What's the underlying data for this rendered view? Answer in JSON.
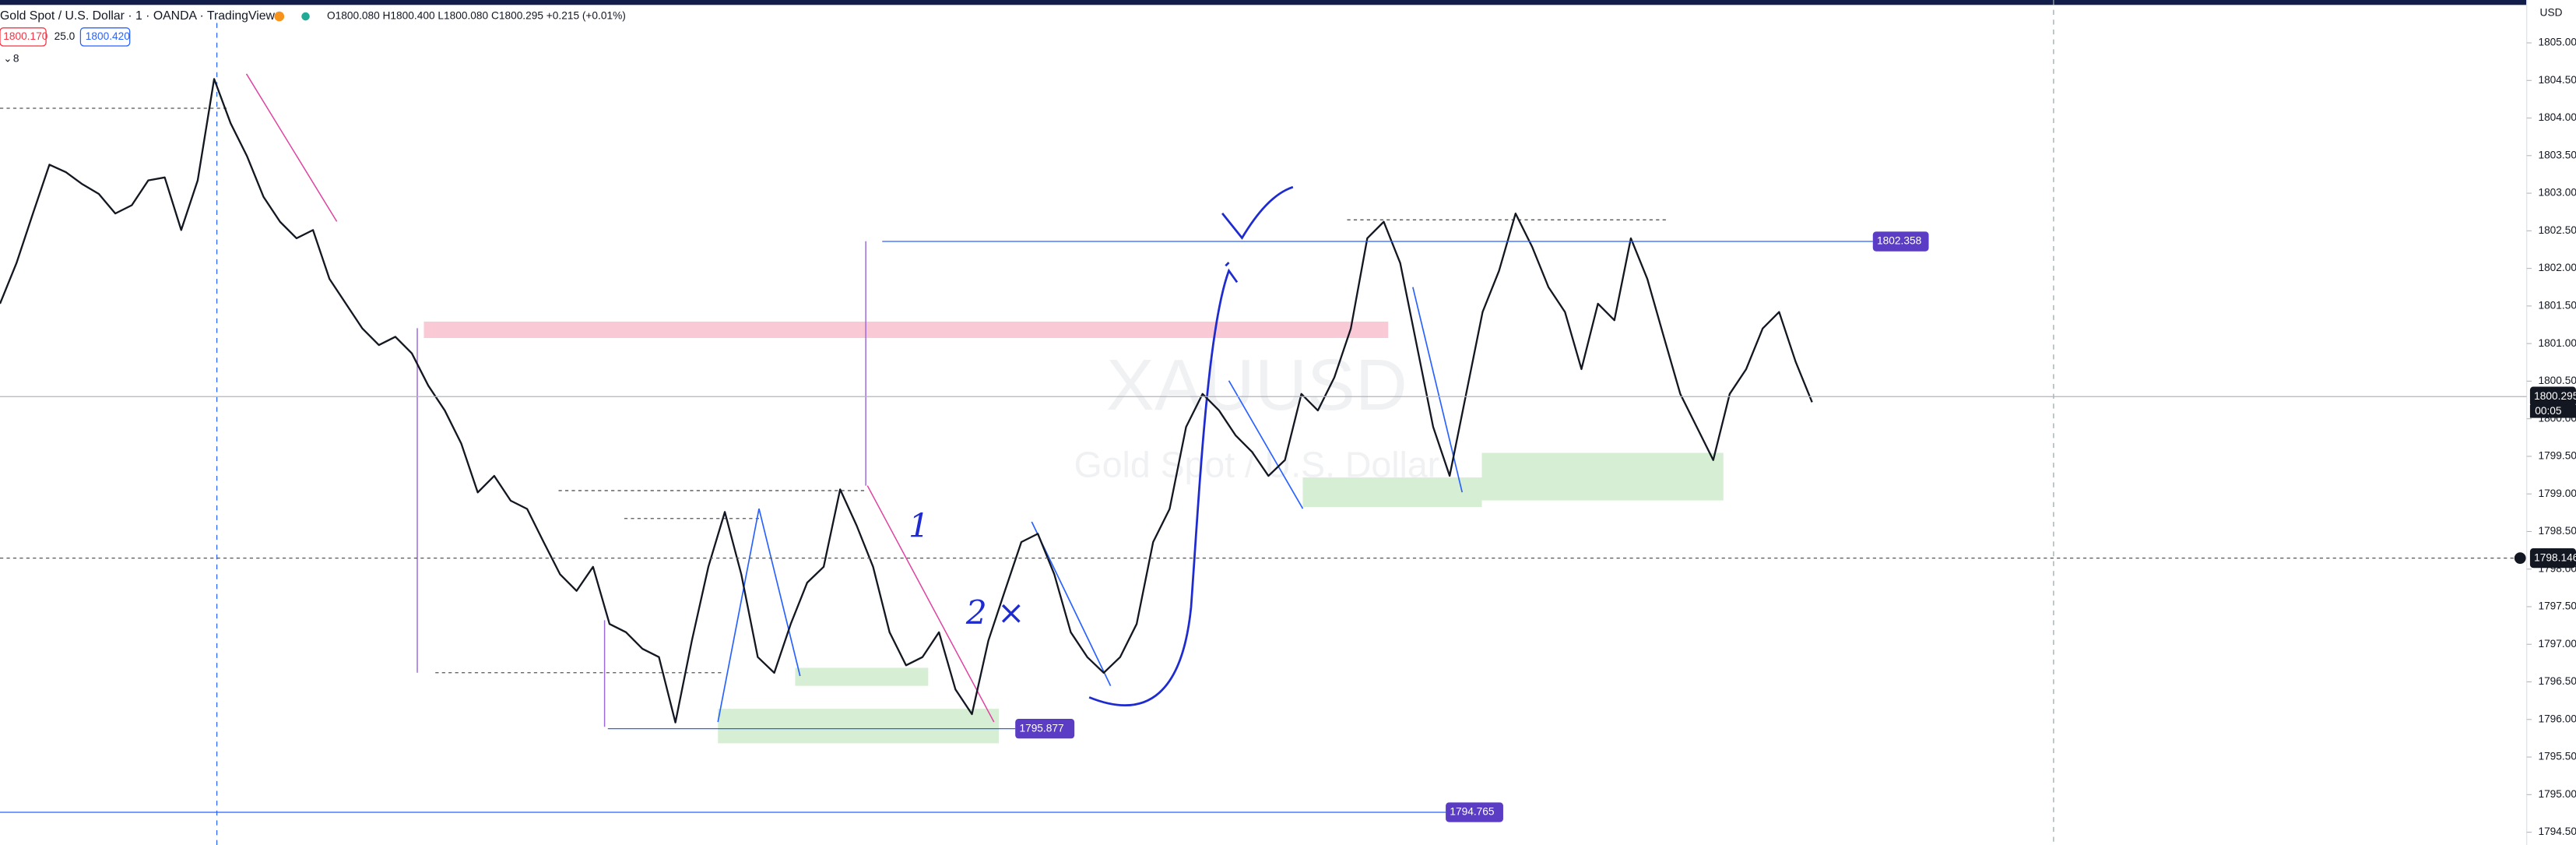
{
  "header": {
    "symbol": "Gold Spot / U.S. Dollar · 1 · OANDA · TradingView",
    "ohlc": "O1800.080 H1800.400 L1800.080 C1800.295 +0.215 (+0.01%)",
    "sell": "1800.170",
    "spread": "25.0",
    "buy": "1800.420",
    "indicators": "8"
  },
  "currency": "USD",
  "watermark": {
    "symbol": "XAUUSD",
    "description": "Gold Spot / U.S. Dollar"
  },
  "annotations": [
    "1",
    "2 ×"
  ],
  "chart_data": {
    "type": "line",
    "color": "#131722",
    "values": [
      1801.53,
      1802.07,
      1802.73,
      1803.38,
      1803.28,
      1803.12,
      1802.99,
      1802.73,
      1802.84,
      1803.17,
      1803.21,
      1802.51,
      1803.17,
      1804.52,
      1803.93,
      1803.49,
      1802.95,
      1802.62,
      1802.4,
      1802.51,
      1801.86,
      1801.53,
      1801.2,
      1800.98,
      1801.09,
      1800.87,
      1800.44,
      1800.11,
      1799.67,
      1799.02,
      1799.24,
      1798.91,
      1798.8,
      1798.36,
      1797.93,
      1797.71,
      1798.03,
      1797.27,
      1797.16,
      1796.94,
      1796.83,
      1795.96,
      1797.05,
      1798.03,
      1798.76,
      1797.93,
      1796.83,
      1796.62,
      1797.27,
      1797.82,
      1798.03,
      1799.06,
      1798.58,
      1798.03,
      1797.16,
      1796.72,
      1796.83,
      1797.16,
      1796.4,
      1796.07,
      1797.05,
      1797.71,
      1798.36,
      1798.47,
      1797.93,
      1797.16,
      1796.83,
      1796.62,
      1796.83,
      1797.27,
      1798.36,
      1798.8,
      1799.89,
      1800.33,
      1800.11,
      1799.78,
      1799.56,
      1799.24,
      1799.45,
      1800.33,
      1800.11,
      1800.55,
      1801.2,
      1802.4,
      1802.62,
      1802.07,
      1800.98,
      1799.89,
      1799.24,
      1800.33,
      1801.42,
      1801.97,
      1802.73,
      1802.29,
      1801.75,
      1801.42,
      1800.66,
      1801.53,
      1801.31,
      1802.4,
      1801.86,
      1801.09,
      1800.33,
      1799.89,
      1799.45,
      1800.33,
      1800.66,
      1801.2,
      1801.42,
      1800.76,
      1800.22
    ],
    "ylim": [
      1794.33,
      1805.57
    ],
    "yticks": [
      {
        "value": 1794.5,
        "label": "1794.500"
      },
      {
        "value": 1795,
        "label": "1795.000"
      },
      {
        "value": 1795.5,
        "label": "1795.500"
      },
      {
        "value": 1796,
        "label": "1796.000"
      },
      {
        "value": 1796.5,
        "label": "1796.500"
      },
      {
        "value": 1797,
        "label": "1797.000"
      },
      {
        "value": 1797.5,
        "label": "1797.500"
      },
      {
        "value": 1798,
        "label": "1798.000"
      },
      {
        "value": 1798.5,
        "label": "1798.500"
      },
      {
        "value": 1799,
        "label": "1799.000"
      },
      {
        "value": 1799.5,
        "label": "1799.500"
      },
      {
        "value": 1800,
        "label": "1800.000"
      },
      {
        "value": 1800.5,
        "label": "1800.500"
      },
      {
        "value": 1801,
        "label": "1801.000"
      },
      {
        "value": 1801.5,
        "label": "1801.500"
      },
      {
        "value": 1802,
        "label": "1802.000"
      },
      {
        "value": 1802.5,
        "label": "1802.500"
      },
      {
        "value": 1803,
        "label": "1803.000"
      },
      {
        "value": 1803.5,
        "label": "1803.500"
      },
      {
        "value": 1804,
        "label": "1804.000"
      },
      {
        "value": 1804.5,
        "label": "1804.500"
      },
      {
        "value": 1805,
        "label": "1805.000"
      }
    ],
    "price_labels": [
      {
        "value": 1802.358,
        "label": "1802.358"
      },
      {
        "value": 1795.877,
        "label": "1795.877"
      },
      {
        "value": 1794.765,
        "label": "1794.765"
      },
      {
        "value": 1800.295,
        "label": "1800.295"
      },
      {
        "value": 1798.146,
        "label": "1798.146"
      }
    ],
    "countdown": "00:05"
  }
}
